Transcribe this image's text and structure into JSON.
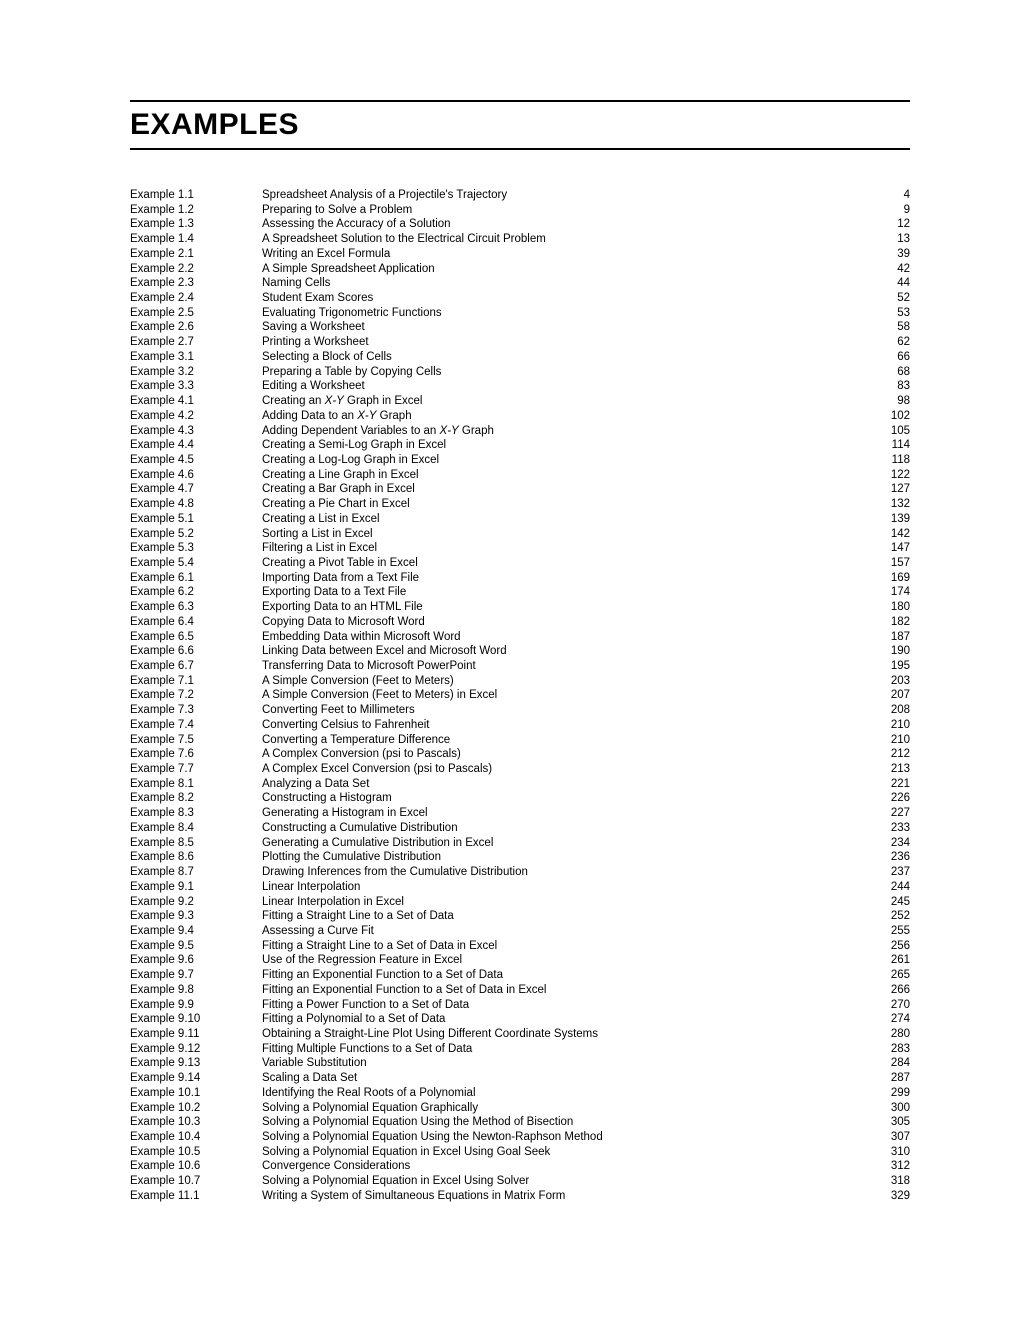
{
  "title": "EXAMPLES",
  "entries": [
    {
      "label": "Example 1.1",
      "desc": "Spreadsheet Analysis of a Projectile's Trajectory",
      "page": "4"
    },
    {
      "label": "Example 1.2",
      "desc": "Preparing to Solve a Problem",
      "page": "9"
    },
    {
      "label": "Example 1.3",
      "desc": "Assessing the Accuracy of a Solution",
      "page": "12"
    },
    {
      "label": "Example 1.4",
      "desc": "A Spreadsheet Solution to the Electrical Circuit Problem",
      "page": "13"
    },
    {
      "label": "Example 2.1",
      "desc": "Writing an Excel Formula",
      "page": "39"
    },
    {
      "label": "Example 2.2",
      "desc": "A Simple Spreadsheet Application",
      "page": "42"
    },
    {
      "label": "Example 2.3",
      "desc": "Naming Cells",
      "page": "44"
    },
    {
      "label": "Example 2.4",
      "desc": "Student Exam Scores",
      "page": "52"
    },
    {
      "label": "Example 2.5",
      "desc": "Evaluating Trigonometric Functions",
      "page": "53"
    },
    {
      "label": "Example 2.6",
      "desc": "Saving a Worksheet",
      "page": "58"
    },
    {
      "label": "Example 2.7",
      "desc": "Printing a Worksheet",
      "page": "62"
    },
    {
      "label": "Example 3.1",
      "desc": "Selecting a Block of Cells",
      "page": "66"
    },
    {
      "label": "Example 3.2",
      "desc": "Preparing a Table by Copying Cells",
      "page": "68"
    },
    {
      "label": "Example 3.3",
      "desc": "Editing a Worksheet",
      "page": "83"
    },
    {
      "label": "Example 4.1",
      "desc_html": "Creating an <span class=\"ital\">X-Y</span> Graph in Excel",
      "page": "98"
    },
    {
      "label": "Example 4.2",
      "desc_html": "Adding Data to an <span class=\"ital\">X-Y</span> Graph",
      "page": "102"
    },
    {
      "label": "Example 4.3",
      "desc_html": "Adding Dependent Variables to an <span class=\"ital\">X-Y</span> Graph",
      "page": "105"
    },
    {
      "label": "Example 4.4",
      "desc": "Creating a Semi-Log Graph in Excel",
      "page": "114"
    },
    {
      "label": "Example 4.5",
      "desc": "Creating a Log-Log Graph in Excel",
      "page": "118"
    },
    {
      "label": "Example 4.6",
      "desc": "Creating a Line Graph in Excel",
      "page": "122"
    },
    {
      "label": "Example 4.7",
      "desc": "Creating a Bar Graph in Excel",
      "page": "127"
    },
    {
      "label": "Example 4.8",
      "desc": "Creating a Pie Chart in Excel",
      "page": "132"
    },
    {
      "label": "Example 5.1",
      "desc": "Creating a List in Excel",
      "page": "139"
    },
    {
      "label": "Example 5.2",
      "desc": "Sorting a List in Excel",
      "page": "142"
    },
    {
      "label": "Example 5.3",
      "desc": "Filtering a List in Excel",
      "page": "147"
    },
    {
      "label": "Example 5.4",
      "desc": "Creating a Pivot Table in Excel",
      "page": "157"
    },
    {
      "label": "Example 6.1",
      "desc": "Importing Data from a Text File",
      "page": "169"
    },
    {
      "label": "Example 6.2",
      "desc": "Exporting Data to a Text File",
      "page": "174"
    },
    {
      "label": "Example 6.3",
      "desc": "Exporting Data to an HTML File",
      "page": "180"
    },
    {
      "label": "Example 6.4",
      "desc": "Copying Data to Microsoft Word",
      "page": "182"
    },
    {
      "label": "Example 6.5",
      "desc": "Embedding Data within Microsoft Word",
      "page": "187"
    },
    {
      "label": "Example 6.6",
      "desc": "Linking Data between Excel and Microsoft Word",
      "page": "190"
    },
    {
      "label": "Example 6.7",
      "desc": "Transferring Data to Microsoft PowerPoint",
      "page": "195"
    },
    {
      "label": "Example 7.1",
      "desc": "A Simple Conversion (Feet to Meters)",
      "page": "203"
    },
    {
      "label": "Example 7.2",
      "desc": "A Simple Conversion (Feet to Meters) in Excel",
      "page": "207"
    },
    {
      "label": "Example 7.3",
      "desc": "Converting Feet to Millimeters",
      "page": "208"
    },
    {
      "label": "Example 7.4",
      "desc": "Converting Celsius to Fahrenheit",
      "page": "210"
    },
    {
      "label": "Example 7.5",
      "desc": "Converting a Temperature Difference",
      "page": "210"
    },
    {
      "label": "Example 7.6",
      "desc": "A Complex Conversion (psi to Pascals)",
      "page": "212"
    },
    {
      "label": "Example 7.7",
      "desc": "A Complex Excel Conversion (psi to Pascals)",
      "page": "213"
    },
    {
      "label": "Example 8.1",
      "desc": "Analyzing a Data Set",
      "page": "221"
    },
    {
      "label": "Example 8.2",
      "desc": "Constructing a Histogram",
      "page": "226"
    },
    {
      "label": "Example 8.3",
      "desc": "Generating a Histogram in Excel",
      "page": "227"
    },
    {
      "label": "Example 8.4",
      "desc": "Constructing a Cumulative Distribution",
      "page": "233"
    },
    {
      "label": "Example 8.5",
      "desc": "Generating a Cumulative Distribution in Excel",
      "page": "234"
    },
    {
      "label": "Example 8.6",
      "desc": "Plotting the Cumulative Distribution",
      "page": "236"
    },
    {
      "label": "Example 8.7",
      "desc": "Drawing Inferences from the Cumulative Distribution",
      "page": "237"
    },
    {
      "label": "Example 9.1",
      "desc": "Linear Interpolation",
      "page": "244"
    },
    {
      "label": "Example 9.2",
      "desc": "Linear Interpolation in Excel",
      "page": "245"
    },
    {
      "label": "Example 9.3",
      "desc": "Fitting a Straight Line to a Set of Data",
      "page": "252"
    },
    {
      "label": "Example 9.4",
      "desc": "Assessing a Curve Fit",
      "page": "255"
    },
    {
      "label": "Example 9.5",
      "desc": "Fitting a Straight Line to a Set of Data in Excel",
      "page": "256"
    },
    {
      "label": "Example 9.6",
      "desc": "Use of the Regression Feature in Excel",
      "page": "261"
    },
    {
      "label": "Example 9.7",
      "desc": "Fitting an Exponential Function to a Set of Data",
      "page": "265"
    },
    {
      "label": "Example 9.8",
      "desc": "Fitting an Exponential Function to a Set of Data in Excel",
      "page": "266"
    },
    {
      "label": "Example 9.9",
      "desc": "Fitting a Power Function to a Set of Data",
      "page": "270"
    },
    {
      "label": "Example 9.10",
      "desc": "Fitting a Polynomial to a Set of Data",
      "page": "274"
    },
    {
      "label": "Example 9.11",
      "desc": "Obtaining a Straight-Line Plot Using Different Coordinate Systems",
      "page": "280"
    },
    {
      "label": "Example 9.12",
      "desc": "Fitting Multiple Functions to a Set of Data",
      "page": "283"
    },
    {
      "label": "Example 9.13",
      "desc": "Variable Substitution",
      "page": "284"
    },
    {
      "label": "Example 9.14",
      "desc": "Scaling a Data Set",
      "page": "287"
    },
    {
      "label": "Example 10.1",
      "desc": "Identifying the Real Roots of a Polynomial",
      "page": "299"
    },
    {
      "label": "Example 10.2",
      "desc": "Solving a Polynomial Equation Graphically",
      "page": "300"
    },
    {
      "label": "Example 10.3",
      "desc": "Solving a Polynomial Equation Using the Method of Bisection",
      "page": "305"
    },
    {
      "label": "Example 10.4",
      "desc": "Solving a Polynomial Equation Using the Newton-Raphson Method",
      "page": "307"
    },
    {
      "label": "Example 10.5",
      "desc": "Solving a Polynomial Equation in Excel Using Goal Seek",
      "page": "310"
    },
    {
      "label": "Example 10.6",
      "desc": "Convergence Considerations",
      "page": "312"
    },
    {
      "label": "Example 10.7",
      "desc": "Solving a Polynomial Equation in Excel Using Solver",
      "page": "318"
    },
    {
      "label": "Example 11.1",
      "desc": "Writing a System of Simultaneous Equations in Matrix Form",
      "page": "329"
    }
  ]
}
